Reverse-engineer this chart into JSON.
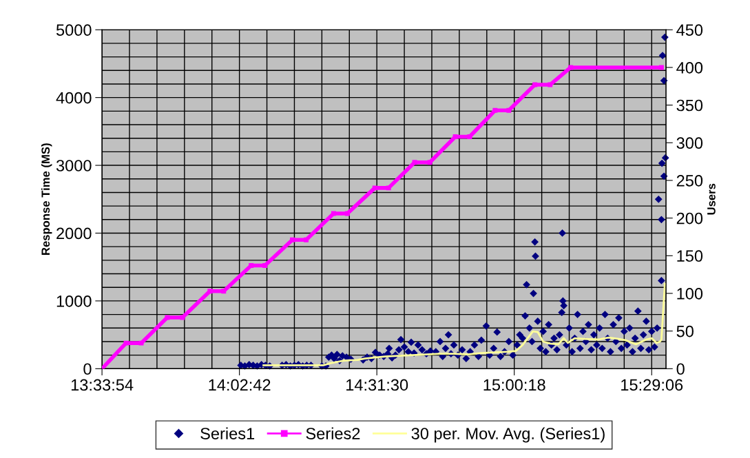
{
  "chart_data": {
    "type": "scatter",
    "ylabel": "Response Time (MS)",
    "y2label": "Users",
    "xlim": [
      13.565,
      15.535
    ],
    "xticks": [
      {
        "value": 13.565,
        "label": "13:33:54"
      },
      {
        "value": 14.045,
        "label": "14:02:42"
      },
      {
        "value": 14.525,
        "label": "14:31:30"
      },
      {
        "value": 15.005,
        "label": "15:00:18"
      },
      {
        "value": 15.485,
        "label": "15:29:06"
      }
    ],
    "ylim": [
      0,
      5000
    ],
    "yticks": [
      0,
      1000,
      2000,
      3000,
      4000,
      5000
    ],
    "y2lim": [
      0,
      450
    ],
    "y2ticks": [
      0,
      50,
      100,
      150,
      200,
      250,
      300,
      350,
      400,
      450
    ],
    "grid": true,
    "legend": "bottom",
    "series": [
      {
        "name": "Series1",
        "marker": "diamond",
        "color": "#000080",
        "x": [
          14.05,
          14.064,
          14.079,
          14.093,
          14.107,
          14.122,
          14.136,
          14.151,
          14.194,
          14.208,
          14.223,
          14.237,
          14.251,
          14.266,
          14.28,
          14.295,
          14.333,
          14.347,
          14.357,
          14.367,
          14.376,
          14.386,
          14.395,
          14.405,
          14.419,
          14.434,
          14.477,
          14.491,
          14.506,
          14.52,
          14.535,
          14.549,
          14.563,
          14.568,
          14.578,
          14.59,
          14.602,
          14.609,
          14.621,
          14.635,
          14.645,
          14.655,
          14.669,
          14.683,
          14.698,
          14.712,
          14.731,
          14.746,
          14.755,
          14.765,
          14.775,
          14.784,
          14.794,
          14.808,
          14.823,
          14.837,
          14.851,
          14.866,
          14.88,
          14.89,
          14.907,
          14.919,
          14.933,
          14.945,
          14.957,
          14.971,
          14.986,
          15.0,
          15.015,
          15.024,
          15.034,
          15.043,
          15.048,
          15.058,
          15.067,
          15.072,
          15.077,
          15.079,
          15.087,
          15.096,
          15.106,
          15.115,
          15.125,
          15.135,
          15.144,
          15.154,
          15.163,
          15.171,
          15.173,
          15.175,
          15.178,
          15.187,
          15.197,
          15.207,
          15.216,
          15.226,
          15.235,
          15.245,
          15.255,
          15.264,
          15.274,
          15.283,
          15.293,
          15.303,
          15.312,
          15.322,
          15.331,
          15.341,
          15.351,
          15.36,
          15.37,
          15.379,
          15.389,
          15.399,
          15.408,
          15.418,
          15.427,
          15.437,
          15.447,
          15.456,
          15.466,
          15.475,
          15.485,
          15.495,
          15.504,
          15.509,
          15.519,
          15.519,
          15.521,
          15.523,
          15.528,
          15.528,
          15.531,
          15.533
        ],
        "values": [
          50,
          40,
          60,
          50,
          40,
          60,
          50,
          40,
          50,
          60,
          40,
          50,
          60,
          40,
          50,
          50,
          40,
          40,
          170,
          200,
          150,
          210,
          120,
          190,
          170,
          140,
          130,
          170,
          150,
          240,
          200,
          180,
          220,
          300,
          160,
          200,
          280,
          430,
          320,
          250,
          390,
          230,
          350,
          280,
          220,
          260,
          250,
          400,
          180,
          300,
          500,
          220,
          350,
          200,
          280,
          150,
          250,
          350,
          180,
          420,
          630,
          200,
          300,
          540,
          180,
          250,
          400,
          200,
          350,
          500,
          450,
          780,
          1240,
          600,
          400,
          1110,
          1870,
          1660,
          700,
          300,
          550,
          250,
          650,
          350,
          450,
          280,
          500,
          830,
          2000,
          1000,
          930,
          350,
          600,
          250,
          450,
          800,
          300,
          550,
          400,
          650,
          280,
          500,
          350,
          600,
          300,
          800,
          450,
          250,
          650,
          400,
          750,
          300,
          550,
          350,
          600,
          250,
          450,
          850,
          300,
          500,
          700,
          280,
          550,
          320,
          600,
          2500,
          1300,
          2200,
          3030,
          4620,
          2840,
          4250,
          4890,
          3110
        ]
      },
      {
        "name": "Series2",
        "type": "line",
        "axis": "y2",
        "marker": "square",
        "color": "#ff00ff",
        "x": [
          13.565,
          13.649,
          13.702,
          13.793,
          13.846,
          13.942,
          13.99,
          14.086,
          14.134,
          14.23,
          14.278,
          14.374,
          14.422,
          14.518,
          14.566,
          14.657,
          14.71,
          14.799,
          14.849,
          14.938,
          14.986,
          15.077,
          15.13,
          15.202,
          15.519
        ],
        "values": [
          0,
          34,
          34,
          68,
          68,
          103,
          103,
          137,
          137,
          171,
          171,
          206,
          206,
          240,
          240,
          274,
          274,
          308,
          308,
          343,
          343,
          377,
          377,
          400,
          400
        ]
      },
      {
        "name": "30 per. Mov. Avg. (Series1)",
        "type": "line",
        "marker": "none",
        "color": "#ffff99",
        "x": [
          14.129,
          14.338,
          14.362,
          14.41,
          14.458,
          14.482,
          14.554,
          14.602,
          14.65,
          14.698,
          14.746,
          14.794,
          14.842,
          14.89,
          14.938,
          14.986,
          15.01,
          15.034,
          15.07,
          15.087,
          15.106,
          15.13,
          15.159,
          15.178,
          15.192,
          15.216,
          15.25,
          15.298,
          15.334,
          15.37,
          15.394,
          15.43,
          15.466,
          15.485,
          15.502,
          15.514,
          15.519,
          15.531
        ],
        "values": [
          50,
          50,
          80,
          120,
          130,
          150,
          180,
          190,
          200,
          210,
          220,
          220,
          210,
          230,
          240,
          250,
          260,
          350,
          550,
          540,
          400,
          370,
          360,
          450,
          380,
          450,
          440,
          430,
          460,
          440,
          420,
          360,
          430,
          450,
          380,
          400,
          430,
          1250
        ]
      }
    ]
  }
}
